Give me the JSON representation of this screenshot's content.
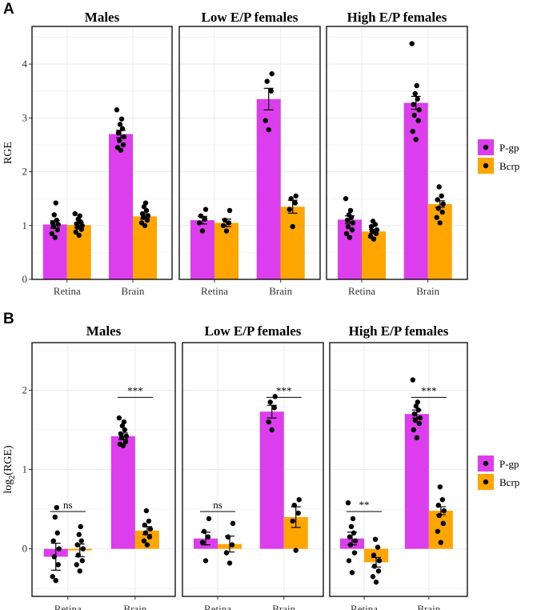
{
  "colors": {
    "pgp": "#DC3DED",
    "bcrp": "#FFA500",
    "grid": "#EBEBEB",
    "border": "#000000",
    "point": "#000000"
  },
  "figure": {
    "legend": [
      {
        "name": "P-gp",
        "color": "#DC3DED"
      },
      {
        "name": "Bcrp",
        "color": "#FFA500"
      }
    ]
  },
  "chart_data": [
    {
      "type": "bar",
      "panel_label": "A",
      "ylabel": "RGE",
      "ylim": [
        0,
        4.7
      ],
      "yticks": [
        0,
        1,
        2,
        3,
        4
      ],
      "categories": [
        "Retina",
        "Brain"
      ],
      "series_names": [
        "P-gp",
        "Bcrp"
      ],
      "facets": [
        {
          "title": "Males",
          "groups": [
            {
              "category": "Retina",
              "series": "P-gp",
              "mean": 1.02,
              "se": 0.07,
              "points": [
                0.78,
                0.85,
                0.92,
                0.98,
                1.02,
                1.05,
                1.1,
                1.2,
                1.42
              ]
            },
            {
              "category": "Retina",
              "series": "Bcrp",
              "mean": 1.01,
              "se": 0.05,
              "points": [
                0.82,
                0.88,
                0.93,
                0.97,
                1.0,
                1.03,
                1.07,
                1.12,
                1.18,
                1.22
              ]
            },
            {
              "category": "Brain",
              "series": "P-gp",
              "mean": 2.7,
              "se": 0.07,
              "points": [
                2.4,
                2.45,
                2.5,
                2.58,
                2.65,
                2.72,
                2.8,
                2.88,
                2.98,
                3.15
              ]
            },
            {
              "category": "Brain",
              "series": "Bcrp",
              "mean": 1.17,
              "se": 0.05,
              "points": [
                1.0,
                1.05,
                1.1,
                1.15,
                1.18,
                1.22,
                1.28,
                1.35,
                1.42
              ]
            }
          ]
        },
        {
          "title": "Low E/P females",
          "groups": [
            {
              "category": "Retina",
              "series": "P-gp",
              "mean": 1.1,
              "se": 0.07,
              "points": [
                0.9,
                1.05,
                1.12,
                1.18,
                1.3
              ]
            },
            {
              "category": "Retina",
              "series": "Bcrp",
              "mean": 1.05,
              "se": 0.07,
              "points": [
                0.9,
                1.0,
                1.05,
                1.1,
                1.28
              ]
            },
            {
              "category": "Brain",
              "series": "P-gp",
              "mean": 3.35,
              "se": 0.2,
              "points": [
                2.78,
                2.95,
                3.5,
                3.68,
                3.82
              ]
            },
            {
              "category": "Brain",
              "series": "Bcrp",
              "mean": 1.35,
              "se": 0.12,
              "points": [
                0.98,
                1.3,
                1.42,
                1.5,
                1.55
              ]
            }
          ]
        },
        {
          "title": "High E/P females",
          "groups": [
            {
              "category": "Retina",
              "series": "P-gp",
              "mean": 1.11,
              "se": 0.07,
              "points": [
                0.78,
                0.85,
                0.92,
                0.98,
                1.05,
                1.1,
                1.15,
                1.2,
                1.28,
                1.5
              ]
            },
            {
              "category": "Retina",
              "series": "Bcrp",
              "mean": 0.89,
              "se": 0.04,
              "points": [
                0.75,
                0.8,
                0.85,
                0.9,
                0.92,
                0.98,
                1.02,
                1.08
              ]
            },
            {
              "category": "Brain",
              "series": "P-gp",
              "mean": 3.28,
              "se": 0.12,
              "points": [
                2.6,
                2.75,
                2.95,
                3.05,
                3.15,
                3.25,
                3.35,
                3.45,
                3.6,
                4.38
              ]
            },
            {
              "category": "Brain",
              "series": "Bcrp",
              "mean": 1.4,
              "se": 0.06,
              "points": [
                1.05,
                1.15,
                1.25,
                1.32,
                1.4,
                1.48,
                1.55,
                1.72
              ]
            }
          ]
        }
      ]
    },
    {
      "type": "bar",
      "panel_label": "B",
      "ylabel": "log2(RGE)",
      "ylabel_base": "log",
      "ylabel_sub": "2",
      "ylabel_rest": "(RGE)",
      "ylim": [
        -0.6,
        2.6
      ],
      "yticks": [
        0,
        1,
        2
      ],
      "categories": [
        "Retina",
        "Brain"
      ],
      "series_names": [
        "P-gp",
        "Bcrp"
      ],
      "facets": [
        {
          "title": "Males",
          "groups": [
            {
              "category": "Retina",
              "series": "P-gp",
              "mean": -0.1,
              "se": 0.17,
              "points": [
                -0.4,
                -0.35,
                -0.2,
                -0.1,
                0.0,
                0.1,
                0.2,
                0.4,
                0.52
              ]
            },
            {
              "category": "Retina",
              "series": "Bcrp",
              "mean": -0.02,
              "se": 0.08,
              "points": [
                -0.28,
                -0.2,
                -0.15,
                -0.08,
                0.0,
                0.05,
                0.1,
                0.18,
                0.28
              ]
            },
            {
              "category": "Brain",
              "series": "P-gp",
              "mean": 1.42,
              "se": 0.04,
              "points": [
                1.3,
                1.32,
                1.35,
                1.4,
                1.42,
                1.45,
                1.5,
                1.55,
                1.6,
                1.65
              ]
            },
            {
              "category": "Brain",
              "series": "Bcrp",
              "mean": 0.23,
              "se": 0.05,
              "points": [
                0.05,
                0.1,
                0.15,
                0.2,
                0.25,
                0.3,
                0.35,
                0.48
              ]
            }
          ],
          "annotations": [
            {
              "category": "Retina",
              "text": "ns",
              "y": 0.47
            },
            {
              "category": "Brain",
              "text": "***",
              "y": 1.91
            }
          ]
        },
        {
          "title": "Low E/P females",
          "groups": [
            {
              "category": "Retina",
              "series": "P-gp",
              "mean": 0.13,
              "se": 0.08,
              "points": [
                -0.15,
                0.08,
                0.15,
                0.22,
                0.38
              ]
            },
            {
              "category": "Retina",
              "series": "Bcrp",
              "mean": 0.06,
              "se": 0.1,
              "points": [
                -0.18,
                -0.05,
                0.05,
                0.15,
                0.32
              ]
            },
            {
              "category": "Brain",
              "series": "P-gp",
              "mean": 1.73,
              "se": 0.08,
              "points": [
                1.5,
                1.6,
                1.78,
                1.85,
                1.92
              ]
            },
            {
              "category": "Brain",
              "series": "Bcrp",
              "mean": 0.4,
              "se": 0.13,
              "points": [
                -0.02,
                0.35,
                0.45,
                0.55,
                0.62
              ]
            }
          ],
          "annotations": [
            {
              "category": "Retina",
              "text": "ns",
              "y": 0.47
            },
            {
              "category": "Brain",
              "text": "***",
              "y": 1.91
            }
          ]
        },
        {
          "title": "High E/P females",
          "groups": [
            {
              "category": "Retina",
              "series": "P-gp",
              "mean": 0.13,
              "se": 0.08,
              "points": [
                -0.3,
                -0.15,
                -0.05,
                0.05,
                0.1,
                0.15,
                0.2,
                0.28,
                0.38,
                0.58
              ]
            },
            {
              "category": "Retina",
              "series": "Bcrp",
              "mean": -0.17,
              "se": 0.06,
              "points": [
                -0.42,
                -0.35,
                -0.28,
                -0.22,
                -0.15,
                -0.08,
                0.02,
                0.12
              ]
            },
            {
              "category": "Brain",
              "series": "P-gp",
              "mean": 1.7,
              "se": 0.05,
              "points": [
                1.4,
                1.5,
                1.58,
                1.62,
                1.65,
                1.7,
                1.75,
                1.8,
                1.85,
                2.13
              ]
            },
            {
              "category": "Brain",
              "series": "Bcrp",
              "mean": 0.48,
              "se": 0.05,
              "points": [
                0.08,
                0.22,
                0.32,
                0.42,
                0.48,
                0.55,
                0.62,
                0.78
              ]
            }
          ],
          "annotations": [
            {
              "category": "Retina",
              "text": "**",
              "y": 0.47
            },
            {
              "category": "Brain",
              "text": "***",
              "y": 1.91
            }
          ]
        }
      ]
    }
  ]
}
